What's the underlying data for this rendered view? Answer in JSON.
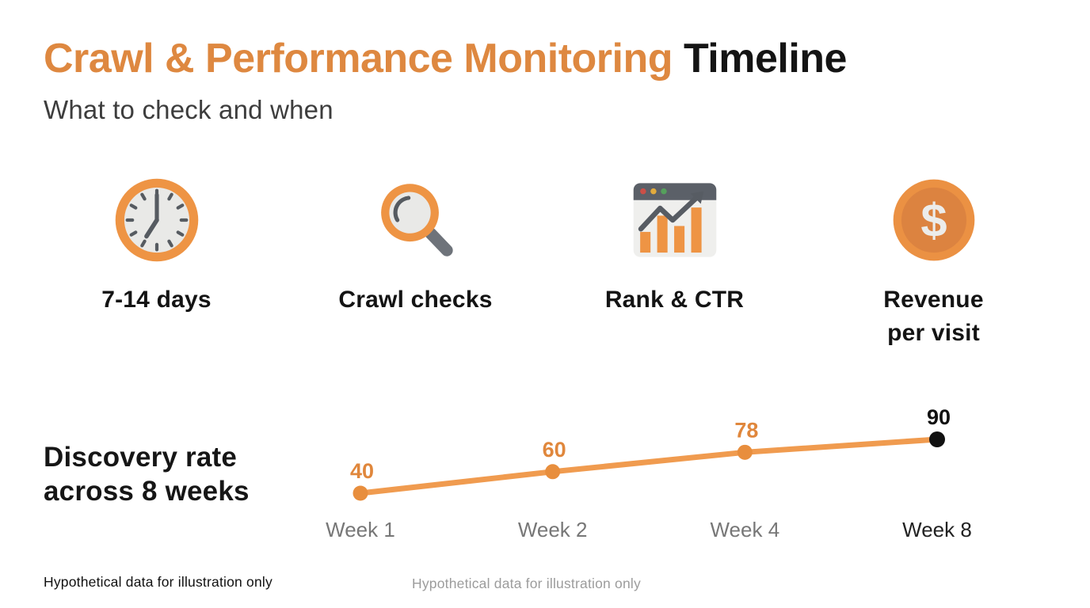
{
  "header": {
    "title_accent": "Crawl & Performance Monitoring ",
    "title_rest": "Timeline",
    "subtitle": "What to check and when"
  },
  "stages": [
    {
      "icon": "clock-icon",
      "label": "7-14 days"
    },
    {
      "icon": "magnifier-icon",
      "label": "Crawl checks"
    },
    {
      "icon": "browser-chart-icon",
      "label": "Rank & CTR"
    },
    {
      "icon": "dollar-coin-icon",
      "label": "Revenue\nper visit"
    }
  ],
  "chart_data": {
    "type": "line",
    "title": "Discovery rate\nacross 8 weeks",
    "categories": [
      "Week 1",
      "Week 2",
      "Week 4",
      "Week 8"
    ],
    "values": [
      40,
      60,
      78,
      90
    ],
    "value_labels_shown": true,
    "grid": false,
    "legend": "none",
    "line_color": "#F09B4F",
    "point_color": "#E88E3D",
    "last_point_color": "#111111",
    "value_label_color": "#E0873C",
    "last_value_label_color": "#111111",
    "tick_label_color": "#777777",
    "last_tick_label_color": "#222222"
  },
  "footnotes": {
    "left": "Hypothetical data for illustration only",
    "center": "Hypothetical data for illustration only"
  },
  "colors": {
    "accent_orange": "#DE8840",
    "icon_orange": "#EE9444",
    "text_dark": "#141414",
    "subtitle_gray": "#3D3D3D",
    "muted_gray": "#9C9C9C"
  }
}
